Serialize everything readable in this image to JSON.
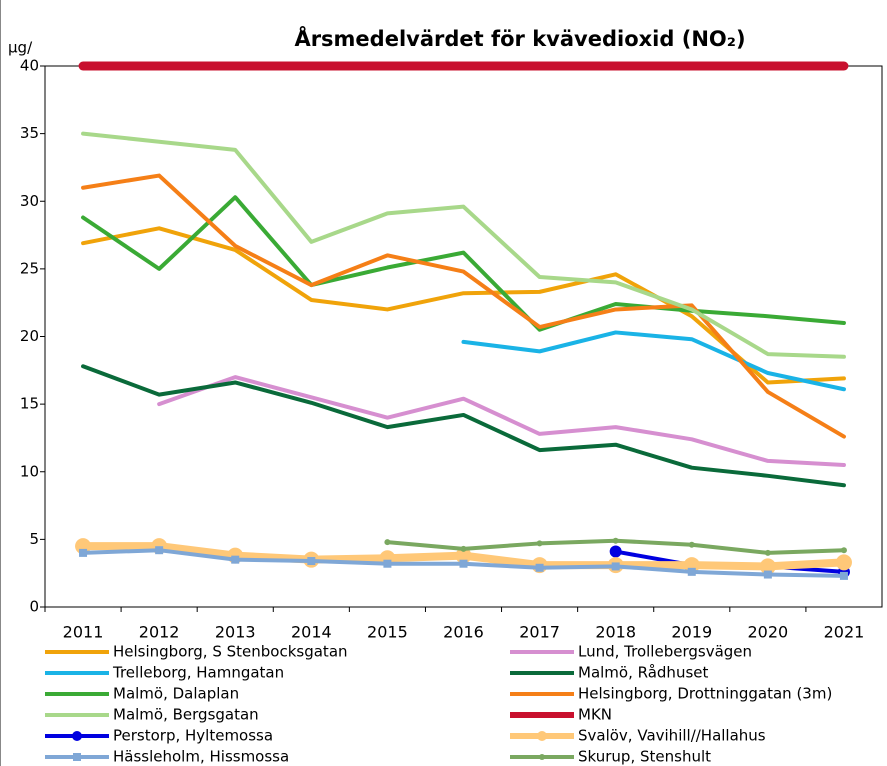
{
  "chart_data": {
    "type": "line",
    "title": "Årsmedelvärdet för kvävedioxid (NO₂)",
    "y_label": "µg/",
    "categories": [
      "2011",
      "2012",
      "2013",
      "2014",
      "2015",
      "2016",
      "2017",
      "2018",
      "2019",
      "2020",
      "2021"
    ],
    "ylim": [
      0,
      40
    ],
    "yticks": [
      0,
      5,
      10,
      15,
      20,
      25,
      30,
      35,
      40
    ],
    "grid": false,
    "series": [
      {
        "name": "Helsingborg, S Stenbocksgatan",
        "color": "#f0a30a",
        "values": [
          26.9,
          28.0,
          26.4,
          22.7,
          22.0,
          23.2,
          23.3,
          24.6,
          21.5,
          16.6,
          16.9
        ]
      },
      {
        "name": "Lund, Trollebergsvägen",
        "color": "#d68fd0",
        "values": [
          null,
          15.0,
          17.0,
          15.5,
          14.0,
          15.4,
          12.8,
          13.3,
          12.4,
          10.8,
          10.5
        ]
      },
      {
        "name": "Trelleborg, Hamngatan",
        "color": "#1ab3e6",
        "values": [
          null,
          null,
          null,
          null,
          null,
          19.6,
          18.9,
          20.3,
          19.8,
          17.3,
          16.1
        ]
      },
      {
        "name": "Malmö, Rådhuset",
        "color": "#0a6a3a",
        "values": [
          17.8,
          15.7,
          16.6,
          15.1,
          13.3,
          14.2,
          11.6,
          12.0,
          10.3,
          9.7,
          9.0
        ]
      },
      {
        "name": "Malmö, Dalaplan",
        "color": "#3aaa35",
        "values": [
          28.8,
          25.0,
          30.3,
          23.8,
          25.1,
          26.2,
          20.5,
          22.4,
          21.9,
          21.5,
          21.0
        ]
      },
      {
        "name": "Helsingborg, Drottninggatan (3m)",
        "color": "#f57f17",
        "values": [
          31.0,
          31.9,
          26.7,
          23.8,
          26.0,
          24.8,
          20.7,
          22.0,
          22.3,
          15.9,
          12.6
        ]
      },
      {
        "name": "Malmö, Bergsgatan",
        "color": "#a8d88a",
        "values": [
          35.0,
          34.4,
          33.8,
          27.0,
          29.1,
          29.6,
          24.4,
          24.0,
          22.0,
          18.7,
          18.5
        ]
      },
      {
        "name": "MKN",
        "color": "#c8102e",
        "values": [
          40,
          40,
          40,
          40,
          40,
          40,
          40,
          40,
          40,
          40,
          40
        ]
      },
      {
        "name": "Perstorp, Hyltemossa",
        "color": "#0000e0",
        "marker": "circle",
        "values": [
          null,
          null,
          null,
          null,
          null,
          null,
          null,
          4.1,
          3.1,
          3.0,
          2.6
        ]
      },
      {
        "name": "Svalöv, Vavihill//Hallahus",
        "color": "#ffc878",
        "marker": "circle",
        "values": [
          4.5,
          4.5,
          3.8,
          3.5,
          3.6,
          3.8,
          3.1,
          3.1,
          3.1,
          3.0,
          3.3
        ]
      },
      {
        "name": "Hässleholm, Hissmossa",
        "color": "#7fa7d6",
        "marker": "square",
        "values": [
          4.0,
          4.2,
          3.5,
          3.4,
          3.2,
          3.2,
          2.9,
          3.0,
          2.6,
          2.4,
          2.3
        ]
      },
      {
        "name": "Skurup, Stenshult",
        "color": "#7aa860",
        "marker": "dot",
        "values": [
          null,
          null,
          null,
          null,
          4.8,
          4.3,
          4.7,
          4.9,
          4.6,
          4.0,
          4.2
        ]
      }
    ]
  }
}
